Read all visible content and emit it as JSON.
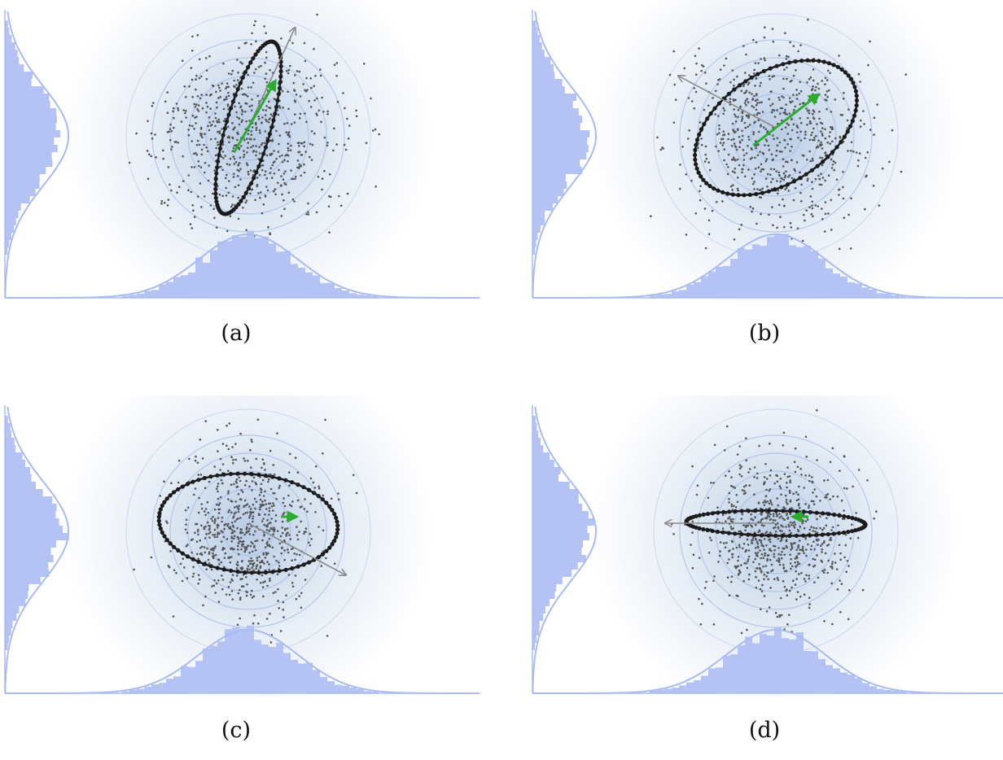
{
  "figure": {
    "panels": [
      {
        "id": "a",
        "caption": "(a)",
        "ellipse_angle_deg": 74,
        "ellipse_semi_major": 1.0,
        "ellipse_semi_minor": 0.25,
        "arrow_angle_deg": 65,
        "green_arrow_angle_deg": 60
      },
      {
        "id": "b",
        "caption": "(b)",
        "ellipse_angle_deg": 33,
        "ellipse_semi_major": 1.0,
        "ellipse_semi_minor": 0.62,
        "arrow_angle_deg": 152,
        "green_arrow_angle_deg": 38
      },
      {
        "id": "c",
        "caption": "(c)",
        "ellipse_angle_deg": -4,
        "ellipse_semi_major": 1.0,
        "ellipse_semi_minor": 0.55,
        "arrow_angle_deg": -28,
        "green_arrow_angle_deg": 0
      },
      {
        "id": "d",
        "caption": "(d)",
        "ellipse_angle_deg": -1,
        "ellipse_semi_major": 1.0,
        "ellipse_semi_minor": 0.14,
        "arrow_angle_deg": 180,
        "green_arrow_angle_deg": 180
      }
    ],
    "colors": {
      "histogram": "#b5c3f4",
      "density_curve": "#a9bbf0",
      "contour": "#9fb8e6",
      "glow": "#7fa3cf",
      "scatter": "#555555",
      "ellipse": "#1c1c1c",
      "gray_arrow": "#8a8a8a",
      "green_arrow": "#2eaa2e"
    }
  }
}
